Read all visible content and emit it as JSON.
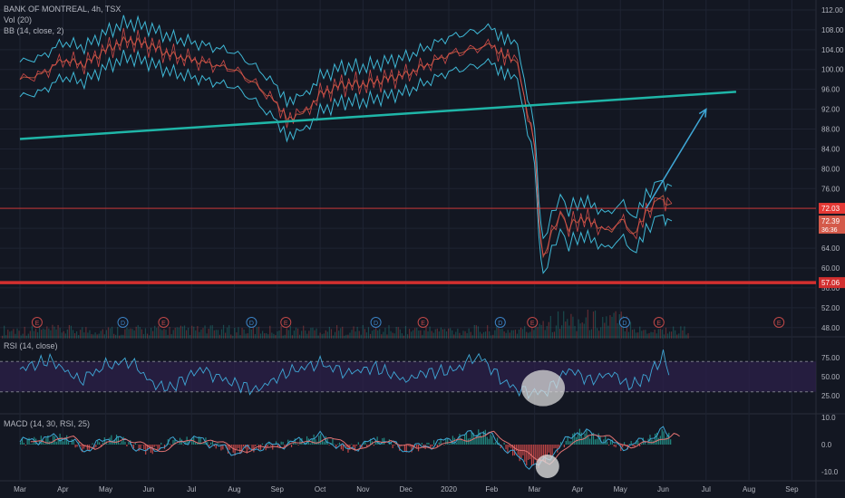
{
  "header": {
    "symbol_line": "BANK OF MONTREAL, 4h, TSX",
    "vol_line": "Vol (20)",
    "bb_line": "BB (14, close, 2)"
  },
  "rsi_label": "RSI (14, close)",
  "macd_label": "MACD (14, 30, RSI, 25)",
  "colors": {
    "background": "#131722",
    "grid": "#1f2433",
    "text": "#b2b5be",
    "up": "#26a69a",
    "down": "#ef5350",
    "bollinger": "#3fb8d6",
    "trendline": "#1fb6a8",
    "horizontal_line": "#d32f2f",
    "price_line": "#e53935",
    "rsi_band": "#2a1f47",
    "rsi_line": "#3fa7d6",
    "macd_line": "#3fa7d6",
    "signal_line": "#e57373"
  },
  "chart_data": [
    {
      "type": "line",
      "name": "price",
      "x_labels": [
        "Mar",
        "Apr",
        "May",
        "Jun",
        "Jul",
        "Aug",
        "Sep",
        "Oct",
        "Nov",
        "Dec",
        "2020",
        "Feb",
        "Mar",
        "Apr",
        "May",
        "Jun",
        "Jul",
        "Aug",
        "Sep"
      ],
      "y_ticks": [
        48,
        52,
        56,
        60,
        64,
        68,
        72,
        76,
        80,
        84,
        88,
        92,
        96,
        100,
        104,
        108,
        112
      ],
      "ylim": [
        46.5,
        114
      ],
      "close_path": [
        [
          0,
          98
        ],
        [
          0.5,
          99
        ],
        [
          1,
          102
        ],
        [
          1.5,
          101
        ],
        [
          2,
          104
        ],
        [
          2.5,
          106
        ],
        [
          3,
          105
        ],
        [
          3.5,
          103
        ],
        [
          4,
          102
        ],
        [
          4.5,
          101
        ],
        [
          5,
          100
        ],
        [
          5.5,
          97
        ],
        [
          6,
          93
        ],
        [
          6.3,
          90
        ],
        [
          6.6,
          91
        ],
        [
          7,
          95
        ],
        [
          7.5,
          97
        ],
        [
          8,
          97
        ],
        [
          8.5,
          98
        ],
        [
          9,
          99
        ],
        [
          9.5,
          101
        ],
        [
          10,
          103
        ],
        [
          10.5,
          104
        ],
        [
          11,
          105
        ],
        [
          11.3,
          103
        ],
        [
          11.6,
          101
        ],
        [
          12,
          85
        ],
        [
          12.1,
          70
        ],
        [
          12.2,
          62
        ],
        [
          12.4,
          67
        ],
        [
          12.6,
          71
        ],
        [
          12.8,
          68
        ],
        [
          13,
          70
        ],
        [
          13.4,
          69
        ],
        [
          13.8,
          67
        ],
        [
          14,
          70
        ],
        [
          14.3,
          67
        ],
        [
          14.6,
          71
        ],
        [
          14.8,
          73
        ],
        [
          15,
          75
        ],
        [
          15.1,
          72
        ],
        [
          15.2,
          73
        ]
      ],
      "upper_line_value": 72.03,
      "upper_price_label": "72.03",
      "current_price_label": "72.39",
      "current_price_sub": "36:36",
      "support_value": 57.06,
      "support_label": "57.06",
      "trendline": [
        [
          0,
          86
        ],
        [
          16.7,
          95.5
        ]
      ],
      "projection_arrow": [
        [
          14.6,
          72
        ],
        [
          16.0,
          92
        ]
      ],
      "earnings_markers": [
        {
          "x": 0.4,
          "label": "E"
        },
        {
          "x": 2.4,
          "label": "D"
        },
        {
          "x": 3.35,
          "label": "E"
        },
        {
          "x": 5.4,
          "label": "D"
        },
        {
          "x": 6.2,
          "label": "E"
        },
        {
          "x": 8.3,
          "label": "D"
        },
        {
          "x": 9.4,
          "label": "E"
        },
        {
          "x": 11.2,
          "label": "D"
        },
        {
          "x": 11.95,
          "label": "E"
        },
        {
          "x": 14.1,
          "label": "D"
        },
        {
          "x": 14.9,
          "label": "E"
        },
        {
          "x": 17.7,
          "label": "E"
        }
      ]
    },
    {
      "type": "line",
      "name": "rsi",
      "y_ticks": [
        25,
        50,
        75
      ],
      "ylim": [
        0,
        100
      ],
      "band": [
        30,
        70
      ],
      "path": [
        [
          0,
          60
        ],
        [
          0.7,
          72
        ],
        [
          1.4,
          45
        ],
        [
          2,
          65
        ],
        [
          2.6,
          70
        ],
        [
          3.1,
          40
        ],
        [
          3.5,
          35
        ],
        [
          4.2,
          60
        ],
        [
          4.8,
          45
        ],
        [
          5.5,
          32
        ],
        [
          6.2,
          55
        ],
        [
          7,
          68
        ],
        [
          7.6,
          55
        ],
        [
          8.3,
          62
        ],
        [
          9,
          45
        ],
        [
          9.4,
          55
        ],
        [
          10.1,
          58
        ],
        [
          10.7,
          78
        ],
        [
          11.2,
          48
        ],
        [
          11.5,
          35
        ],
        [
          12,
          28
        ],
        [
          12.3,
          32
        ],
        [
          12.8,
          60
        ],
        [
          13.3,
          45
        ],
        [
          13.8,
          55
        ],
        [
          14.2,
          38
        ],
        [
          14.6,
          48
        ],
        [
          15,
          76
        ],
        [
          15.2,
          52
        ]
      ],
      "highlight": {
        "x": 12.2,
        "y": 35
      }
    },
    {
      "type": "bar",
      "name": "macd",
      "y_ticks": [
        -10.0,
        0.0,
        10.0
      ],
      "ylim": [
        -13,
        11
      ],
      "path": [
        [
          0,
          1
        ],
        [
          1,
          3
        ],
        [
          1.5,
          -2
        ],
        [
          2.2,
          3
        ],
        [
          3,
          -3
        ],
        [
          3.5,
          1
        ],
        [
          4.2,
          2
        ],
        [
          5,
          -3
        ],
        [
          5.6,
          -1
        ],
        [
          6.3,
          0.5
        ],
        [
          7,
          3
        ],
        [
          7.6,
          -2
        ],
        [
          8.4,
          2
        ],
        [
          9,
          -2
        ],
        [
          9.6,
          0
        ],
        [
          10.3,
          3
        ],
        [
          10.8,
          5
        ],
        [
          11.3,
          -1
        ],
        [
          11.8,
          -7
        ],
        [
          12.1,
          -8
        ],
        [
          12.5,
          -2
        ],
        [
          13,
          5
        ],
        [
          13.5,
          3
        ],
        [
          14,
          -1
        ],
        [
          14.5,
          1
        ],
        [
          15,
          5
        ],
        [
          15.2,
          2
        ]
      ],
      "highlight": {
        "x": 12.3,
        "y": -8
      }
    }
  ]
}
